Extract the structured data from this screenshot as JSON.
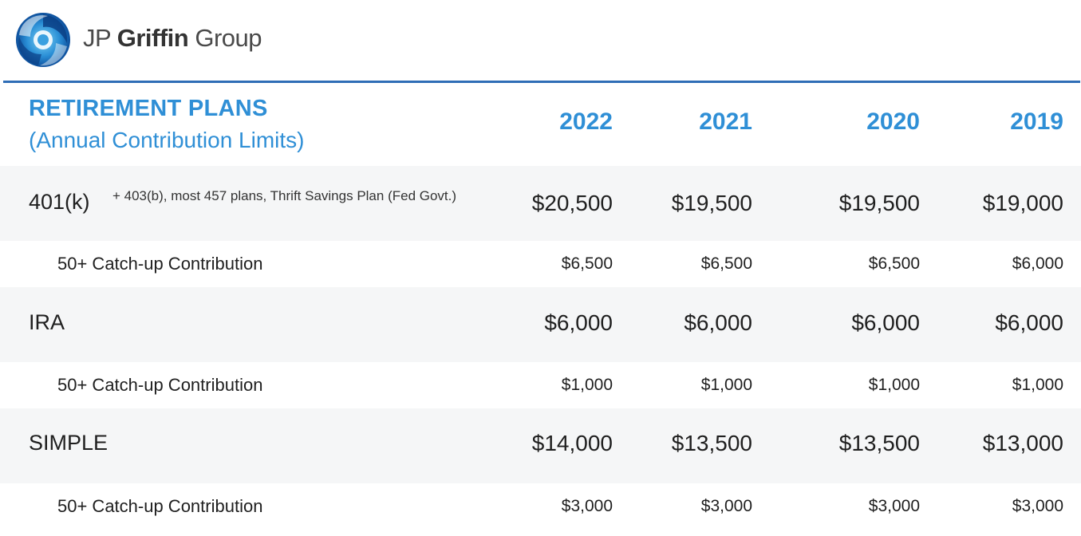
{
  "brand": {
    "logo_text_light_1": "JP ",
    "logo_text_bold": "Griffin",
    "logo_text_light_2": " Group",
    "accent_color": "#2f8fd6",
    "rule_color": "#2e6db6"
  },
  "table": {
    "title": "RETIREMENT PLANS",
    "subtitle": "(Annual Contribution Limits)",
    "years": [
      "2022",
      "2021",
      "2020",
      "2019"
    ],
    "rows": [
      {
        "label": "401(k)",
        "note": "+ 403(b), most 457 plans, Thrift Savings Plan (Fed Govt.)",
        "values": [
          "$20,500",
          "$19,500",
          "$19,500",
          "$19,000"
        ]
      },
      {
        "label": "50+ Catch-up Contribution",
        "values": [
          "$6,500",
          "$6,500",
          "$6,500",
          "$6,000"
        ]
      },
      {
        "label": "IRA",
        "values": [
          "$6,000",
          "$6,000",
          "$6,000",
          "$6,000"
        ]
      },
      {
        "label": "50+ Catch-up Contribution",
        "values": [
          "$1,000",
          "$1,000",
          "$1,000",
          "$1,000"
        ]
      },
      {
        "label": "SIMPLE",
        "values": [
          "$14,000",
          "$13,500",
          "$13,500",
          "$13,000"
        ]
      },
      {
        "label": "50+ Catch-up Contribution",
        "values": [
          "$3,000",
          "$3,000",
          "$3,000",
          "$3,000"
        ]
      }
    ]
  }
}
